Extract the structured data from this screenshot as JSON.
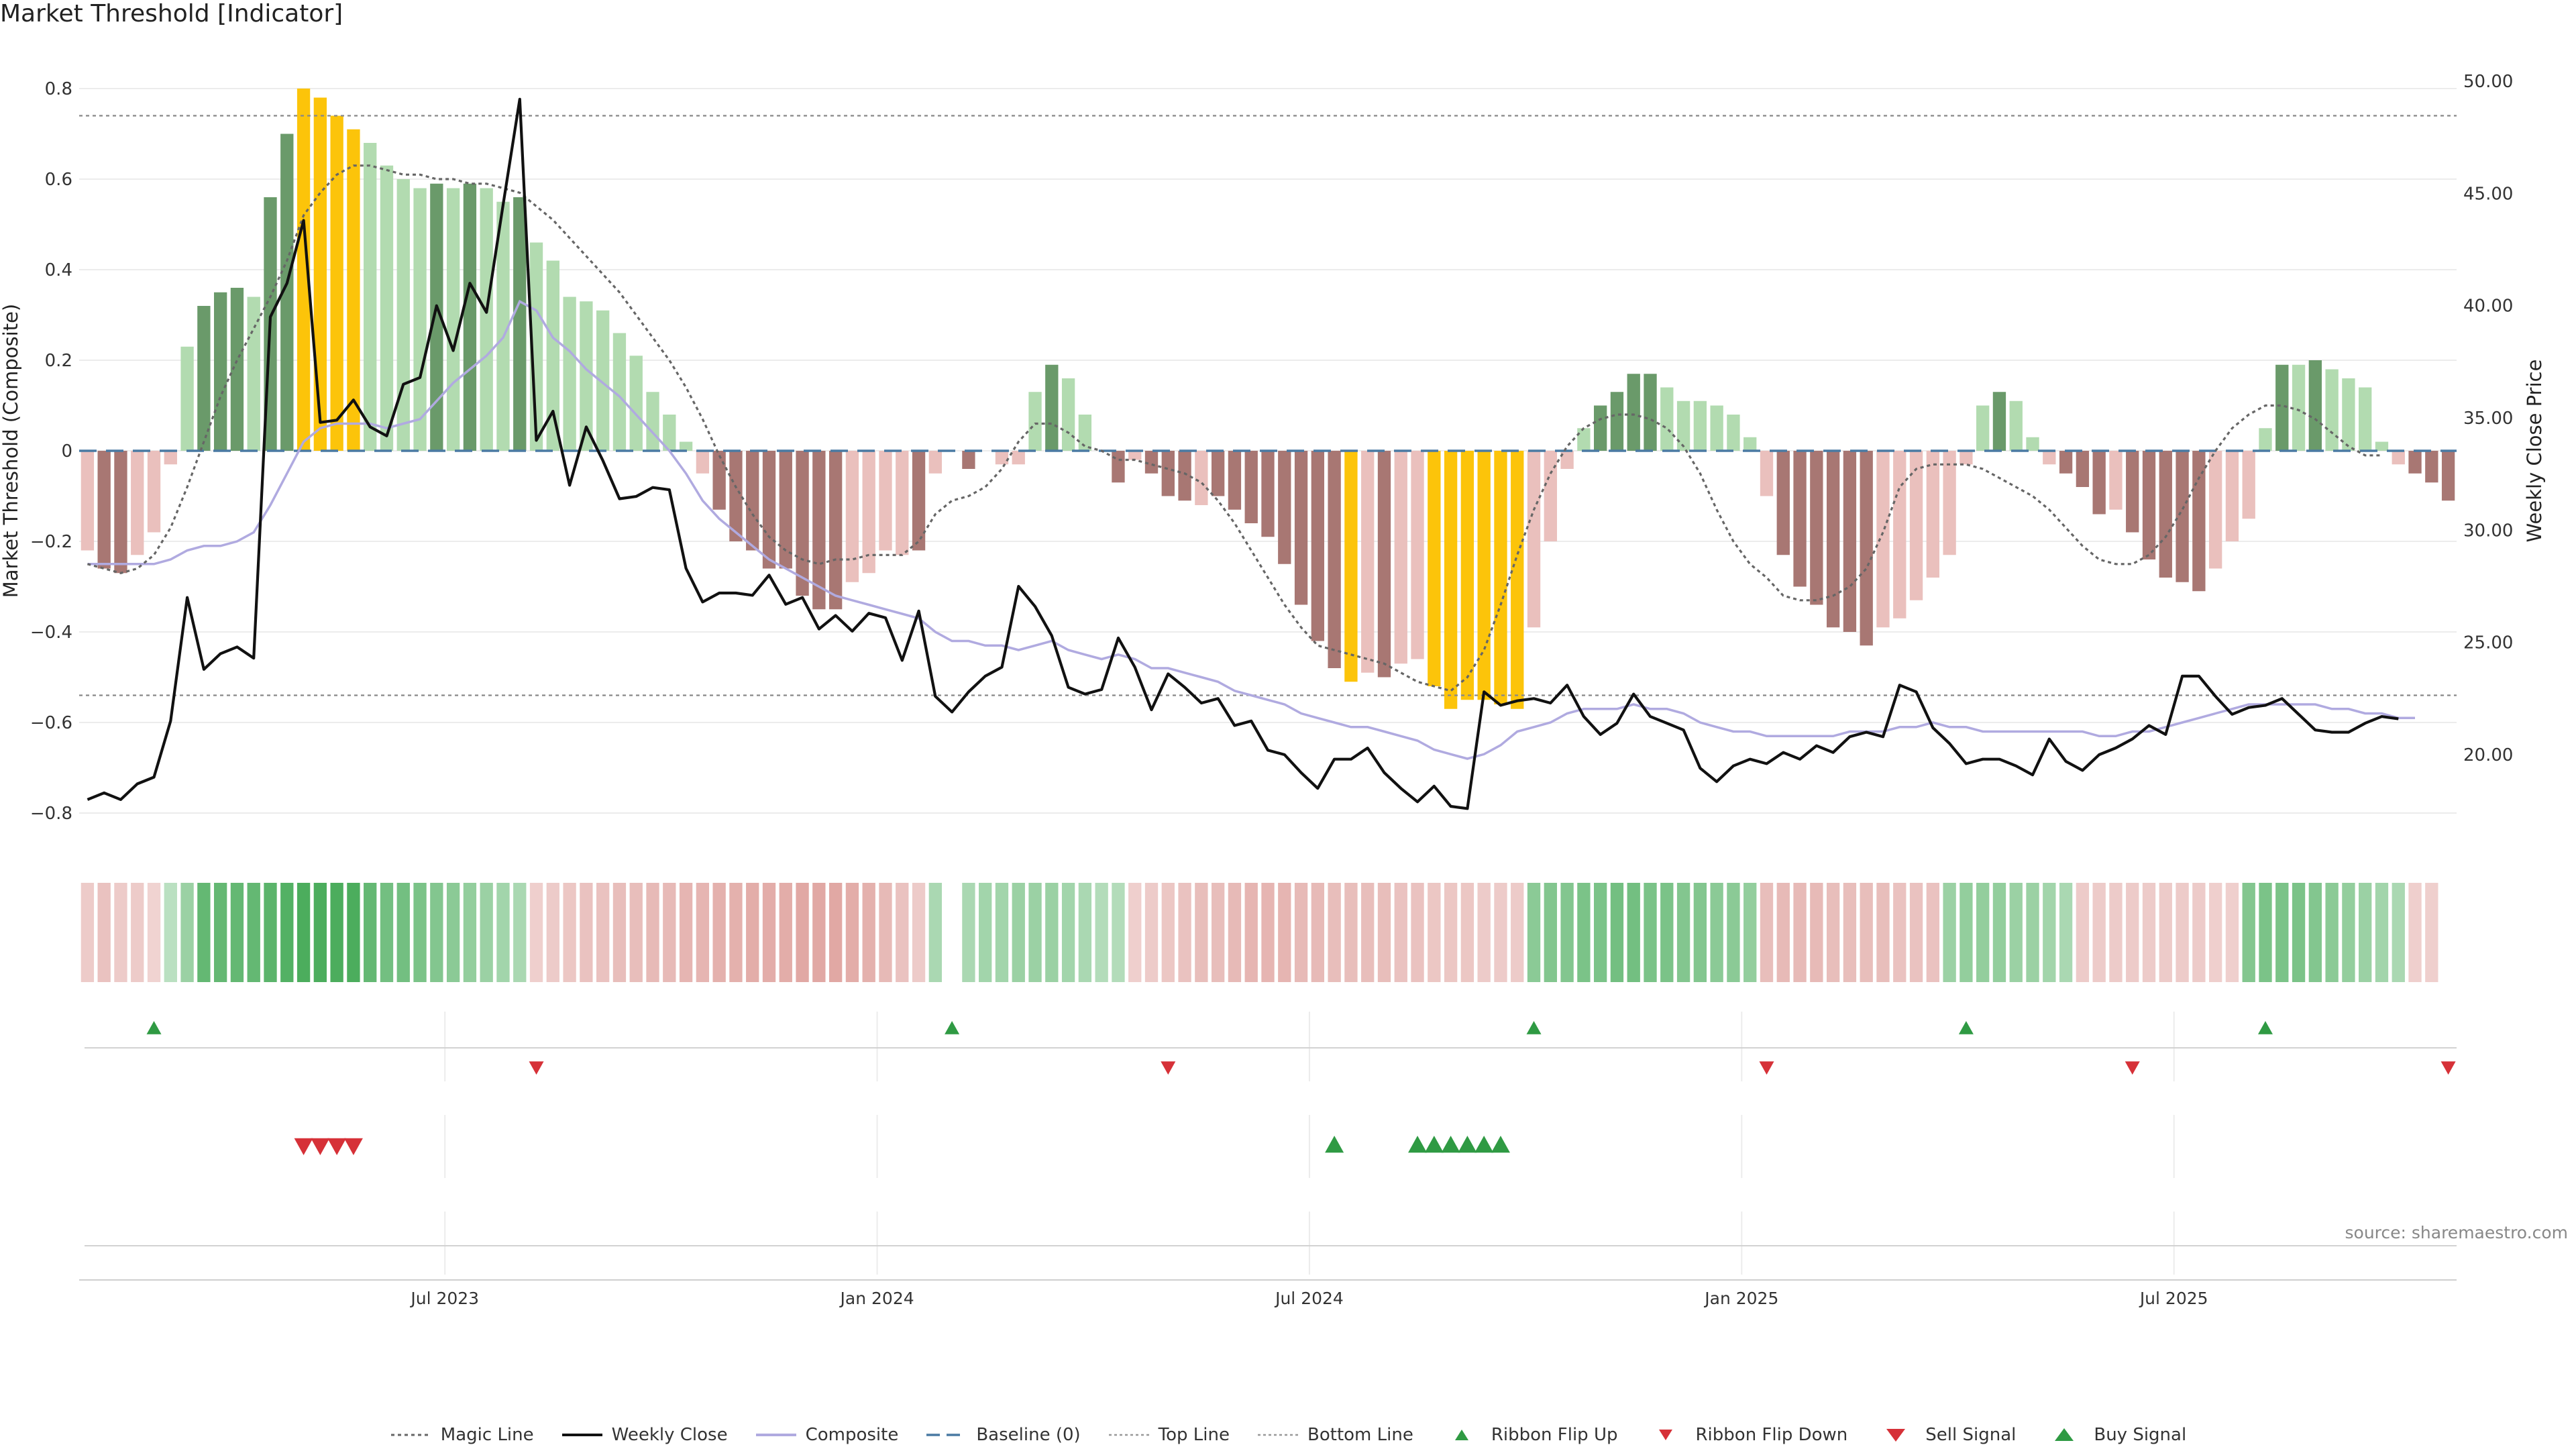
{
  "title": "Market Threshold [Indicator]",
  "source": "source: sharemaestro.com",
  "chart_data": {
    "type": "bar",
    "left_axis": {
      "label": "Market Threshold (Composite)",
      "range": [
        -0.88,
        0.8
      ],
      "ticks": [
        0.8,
        0.6,
        0.4,
        0.2,
        0,
        -0.2,
        -0.4,
        -0.6,
        -0.8
      ],
      "tick_labels": [
        "0.8",
        "0.6",
        "0.4",
        "0.2",
        "0",
        "−0.2",
        "−0.4",
        "−0.6",
        "−0.8"
      ]
    },
    "right_axis": {
      "label": "Weekly Close Price",
      "range": [
        17.0,
        50.0
      ],
      "ticks": [
        50,
        45,
        40,
        35,
        30,
        25,
        20
      ],
      "tick_labels": [
        "50.00",
        "45.00",
        "40.00",
        "35.00",
        "30.00",
        "25.00",
        "20.00"
      ]
    },
    "x_axis": {
      "tick_labels": [
        "Jul 2023",
        "Jan 2024",
        "Jul 2024",
        "Jan 2025",
        "Jul 2025"
      ],
      "tick_weeks": [
        22,
        48,
        74,
        100,
        126
      ]
    },
    "top_line": 0.74,
    "bottom_line": -0.54,
    "baseline": 0,
    "grid": true,
    "legend_position": "bottom-center",
    "colors": {
      "strong_up": "#6a9a6a",
      "weak_up": "#b2dbb0",
      "strong_down": "#a87773",
      "weak_down": "#eac0bd",
      "extreme": "#fcc40a",
      "weekly_close": "#111111",
      "composite": "#b0aae0",
      "baseline": "#4a7aa3",
      "magic_line": "#666666",
      "buy": "#2f9a43",
      "sell": "#d63138"
    },
    "bars": [
      -0.22,
      -0.26,
      -0.27,
      -0.23,
      -0.18,
      -0.03,
      0.23,
      0.32,
      0.35,
      0.36,
      0.34,
      0.56,
      0.7,
      0.8,
      0.78,
      0.74,
      0.71,
      0.68,
      0.63,
      0.6,
      0.58,
      0.59,
      0.58,
      0.59,
      0.58,
      0.55,
      0.56,
      0.46,
      0.42,
      0.34,
      0.33,
      0.31,
      0.26,
      0.21,
      0.13,
      0.08,
      0.02,
      -0.05,
      -0.13,
      -0.2,
      -0.22,
      -0.26,
      -0.26,
      -0.32,
      -0.35,
      -0.35,
      -0.29,
      -0.27,
      -0.22,
      -0.23,
      -0.22,
      -0.05,
      0.0,
      -0.04,
      0.0,
      -0.03,
      -0.03,
      0.13,
      0.19,
      0.16,
      0.08,
      0.0,
      -0.07,
      -0.02,
      -0.05,
      -0.1,
      -0.11,
      -0.12,
      -0.1,
      -0.13,
      -0.16,
      -0.19,
      -0.25,
      -0.34,
      -0.42,
      -0.48,
      -0.51,
      -0.49,
      -0.5,
      -0.47,
      -0.46,
      -0.52,
      -0.57,
      -0.55,
      -0.55,
      -0.56,
      -0.57,
      -0.39,
      -0.2,
      -0.04,
      0.05,
      0.1,
      0.13,
      0.17,
      0.17,
      0.14,
      0.11,
      0.11,
      0.1,
      0.08,
      0.03,
      -0.1,
      -0.23,
      -0.3,
      -0.34,
      -0.39,
      -0.4,
      -0.43,
      -0.39,
      -0.37,
      -0.33,
      -0.28,
      -0.23,
      -0.03,
      0.1,
      0.13,
      0.11,
      0.03,
      -0.03,
      -0.05,
      -0.08,
      -0.14,
      -0.13,
      -0.18,
      -0.24,
      -0.28,
      -0.29,
      -0.31,
      -0.26,
      -0.2,
      -0.15,
      0.05,
      0.19,
      0.19,
      0.2,
      0.18,
      0.16,
      0.14,
      0.02,
      -0.03,
      -0.05,
      -0.07,
      -0.11
    ],
    "bar_classes": [
      "weak_down",
      "strong_down",
      "strong_down",
      "weak_down",
      "weak_down",
      "weak_down",
      "weak_up",
      "strong_up",
      "strong_up",
      "strong_up",
      "weak_up",
      "strong_up",
      "strong_up",
      "extreme",
      "extreme",
      "extreme",
      "extreme",
      "weak_up",
      "weak_up",
      "weak_up",
      "weak_up",
      "strong_up",
      "weak_up",
      "strong_up",
      "weak_up",
      "weak_up",
      "strong_up",
      "weak_up",
      "weak_up",
      "weak_up",
      "weak_up",
      "weak_up",
      "weak_up",
      "weak_up",
      "weak_up",
      "weak_up",
      "weak_up",
      "weak_down",
      "strong_down",
      "strong_down",
      "strong_down",
      "strong_down",
      "strong_down",
      "strong_down",
      "strong_down",
      "strong_down",
      "weak_down",
      "weak_down",
      "weak_down",
      "weak_down",
      "strong_down",
      "weak_down",
      "weak_down",
      "strong_down",
      "weak_down",
      "weak_down",
      "weak_down",
      "weak_up",
      "strong_up",
      "weak_up",
      "weak_up",
      "weak_up",
      "strong_down",
      "weak_down",
      "strong_down",
      "strong_down",
      "strong_down",
      "weak_down",
      "strong_down",
      "strong_down",
      "strong_down",
      "strong_down",
      "strong_down",
      "strong_down",
      "strong_down",
      "strong_down",
      "extreme",
      "weak_down",
      "strong_down",
      "weak_down",
      "weak_down",
      "extreme",
      "extreme",
      "extreme",
      "extreme",
      "extreme",
      "extreme",
      "weak_down",
      "weak_down",
      "weak_down",
      "weak_up",
      "strong_up",
      "strong_up",
      "strong_up",
      "strong_up",
      "weak_up",
      "weak_up",
      "weak_up",
      "weak_up",
      "weak_up",
      "weak_up",
      "weak_down",
      "strong_down",
      "strong_down",
      "strong_down",
      "strong_down",
      "strong_down",
      "strong_down",
      "weak_down",
      "weak_down",
      "weak_down",
      "weak_down",
      "weak_down",
      "weak_down",
      "weak_up",
      "strong_up",
      "weak_up",
      "weak_up",
      "weak_down",
      "strong_down",
      "strong_down",
      "strong_down",
      "weak_down",
      "strong_down",
      "strong_down",
      "strong_down",
      "strong_down",
      "strong_down",
      "weak_down",
      "weak_down",
      "weak_down",
      "weak_up",
      "strong_up",
      "weak_up",
      "strong_up",
      "weak_up",
      "weak_up",
      "weak_up",
      "weak_up",
      "weak_down",
      "strong_down",
      "strong_down",
      "strong_down"
    ],
    "weekly_close": [
      18.0,
      18.3,
      18.0,
      18.7,
      19.0,
      21.5,
      27.0,
      23.8,
      24.5,
      24.8,
      24.3,
      39.5,
      41.0,
      43.8,
      34.8,
      34.9,
      35.8,
      34.6,
      34.2,
      36.5,
      36.8,
      40.0,
      38.0,
      41.0,
      39.7,
      44.5,
      49.2,
      34.0,
      35.3,
      32.0,
      34.6,
      33.1,
      31.4,
      31.5,
      31.9,
      31.8,
      28.3,
      26.8,
      27.2,
      27.2,
      27.1,
      28.0,
      26.7,
      27.0,
      25.6,
      26.2,
      25.5,
      26.3,
      26.1,
      24.2,
      26.4,
      22.6,
      21.9,
      22.8,
      23.5,
      23.9,
      27.5,
      26.6,
      25.3,
      23.0,
      22.7,
      22.9,
      25.2,
      23.9,
      22.0,
      23.6,
      23.0,
      22.3,
      22.5,
      21.3,
      21.5,
      20.2,
      20.0,
      19.2,
      18.5,
      19.8,
      19.8,
      20.3,
      19.2,
      18.5,
      17.9,
      18.6,
      17.7,
      17.6,
      22.8,
      22.2,
      22.4,
      22.5,
      22.3,
      23.1,
      21.7,
      20.9,
      21.4,
      22.7,
      21.7,
      21.4,
      21.1,
      19.4,
      18.8,
      19.5,
      19.8,
      19.6,
      20.1,
      19.8,
      20.4,
      20.1,
      20.8,
      21.0,
      20.8,
      23.1,
      22.8,
      21.2,
      20.5,
      19.6,
      19.8,
      19.8,
      19.5,
      19.1,
      20.7,
      19.7,
      19.3,
      20.0,
      20.3,
      20.7,
      21.3,
      20.9,
      23.5,
      23.5,
      22.6,
      21.8,
      22.1,
      22.2,
      22.5,
      21.8,
      21.1,
      21.0,
      21.0,
      21.4,
      21.7,
      21.6
    ],
    "composite": [
      -0.25,
      -0.25,
      -0.25,
      -0.25,
      -0.25,
      -0.24,
      -0.22,
      -0.21,
      -0.21,
      -0.2,
      -0.18,
      -0.12,
      -0.05,
      0.02,
      0.05,
      0.06,
      0.06,
      0.06,
      0.05,
      0.06,
      0.07,
      0.11,
      0.15,
      0.18,
      0.21,
      0.25,
      0.33,
      0.31,
      0.25,
      0.22,
      0.18,
      0.15,
      0.12,
      0.08,
      0.04,
      0.0,
      -0.05,
      -0.11,
      -0.15,
      -0.18,
      -0.21,
      -0.24,
      -0.26,
      -0.28,
      -0.3,
      -0.32,
      -0.33,
      -0.34,
      -0.35,
      -0.36,
      -0.37,
      -0.4,
      -0.42,
      -0.42,
      -0.43,
      -0.43,
      -0.44,
      -0.43,
      -0.42,
      -0.44,
      -0.45,
      -0.46,
      -0.45,
      -0.46,
      -0.48,
      -0.48,
      -0.49,
      -0.5,
      -0.51,
      -0.53,
      -0.54,
      -0.55,
      -0.56,
      -0.58,
      -0.59,
      -0.6,
      -0.61,
      -0.61,
      -0.62,
      -0.63,
      -0.64,
      -0.66,
      -0.67,
      -0.68,
      -0.67,
      -0.65,
      -0.62,
      -0.61,
      -0.6,
      -0.58,
      -0.57,
      -0.57,
      -0.57,
      -0.56,
      -0.57,
      -0.57,
      -0.58,
      -0.6,
      -0.61,
      -0.62,
      -0.62,
      -0.63,
      -0.63,
      -0.63,
      -0.63,
      -0.63,
      -0.62,
      -0.62,
      -0.62,
      -0.61,
      -0.61,
      -0.6,
      -0.61,
      -0.61,
      -0.62,
      -0.62,
      -0.62,
      -0.62,
      -0.62,
      -0.62,
      -0.62,
      -0.63,
      -0.63,
      -0.62,
      -0.62,
      -0.61,
      -0.6,
      -0.59,
      -0.58,
      -0.57,
      -0.56,
      -0.56,
      -0.56,
      -0.56,
      -0.56,
      -0.57,
      -0.57,
      -0.58,
      -0.58,
      -0.59,
      -0.59
    ],
    "magic_line": [
      -0.25,
      -0.26,
      -0.27,
      -0.26,
      -0.23,
      -0.17,
      -0.08,
      0.02,
      0.12,
      0.2,
      0.27,
      0.34,
      0.42,
      0.52,
      0.57,
      0.61,
      0.63,
      0.63,
      0.62,
      0.61,
      0.61,
      0.6,
      0.6,
      0.59,
      0.59,
      0.58,
      0.57,
      0.54,
      0.51,
      0.47,
      0.43,
      0.39,
      0.35,
      0.3,
      0.25,
      0.2,
      0.14,
      0.07,
      -0.01,
      -0.08,
      -0.14,
      -0.19,
      -0.22,
      -0.24,
      -0.25,
      -0.24,
      -0.24,
      -0.23,
      -0.23,
      -0.23,
      -0.2,
      -0.14,
      -0.11,
      -0.1,
      -0.08,
      -0.04,
      0.02,
      0.06,
      0.06,
      0.04,
      0.01,
      0.0,
      -0.02,
      -0.02,
      -0.03,
      -0.04,
      -0.05,
      -0.07,
      -0.11,
      -0.16,
      -0.22,
      -0.28,
      -0.34,
      -0.39,
      -0.43,
      -0.44,
      -0.45,
      -0.46,
      -0.47,
      -0.49,
      -0.51,
      -0.52,
      -0.53,
      -0.5,
      -0.44,
      -0.34,
      -0.23,
      -0.13,
      -0.05,
      0.01,
      0.05,
      0.07,
      0.08,
      0.08,
      0.07,
      0.05,
      0.01,
      -0.05,
      -0.13,
      -0.2,
      -0.25,
      -0.28,
      -0.32,
      -0.33,
      -0.33,
      -0.32,
      -0.3,
      -0.26,
      -0.18,
      -0.08,
      -0.04,
      -0.03,
      -0.03,
      -0.03,
      -0.04,
      -0.06,
      -0.08,
      -0.1,
      -0.13,
      -0.17,
      -0.21,
      -0.24,
      -0.25,
      -0.25,
      -0.23,
      -0.19,
      -0.13,
      -0.06,
      0.0,
      0.05,
      0.08,
      0.1,
      0.1,
      0.09,
      0.07,
      0.04,
      0.01,
      -0.01,
      -0.01
    ],
    "ribbon": [
      -0.35,
      -0.45,
      -0.35,
      -0.35,
      -0.25,
      0.25,
      0.45,
      0.8,
      0.8,
      0.8,
      0.8,
      0.85,
      0.9,
      0.95,
      0.95,
      0.95,
      0.95,
      0.8,
      0.7,
      0.7,
      0.65,
      0.6,
      0.55,
      0.5,
      0.45,
      0.4,
      0.35,
      -0.3,
      -0.35,
      -0.4,
      -0.45,
      -0.45,
      -0.5,
      -0.5,
      -0.55,
      -0.55,
      -0.6,
      -0.6,
      -0.65,
      -0.65,
      -0.7,
      -0.7,
      -0.7,
      -0.75,
      -0.75,
      -0.75,
      -0.7,
      -0.65,
      -0.55,
      -0.45,
      -0.35,
      0.35,
      0.0,
      0.35,
      0.4,
      0.4,
      0.45,
      0.45,
      0.45,
      0.4,
      0.35,
      0.3,
      0.3,
      -0.3,
      -0.35,
      -0.4,
      -0.45,
      -0.5,
      -0.5,
      -0.55,
      -0.6,
      -0.6,
      -0.6,
      -0.55,
      -0.55,
      -0.5,
      -0.5,
      -0.5,
      -0.5,
      -0.45,
      -0.45,
      -0.4,
      -0.4,
      -0.4,
      -0.35,
      -0.35,
      -0.35,
      0.55,
      0.6,
      0.6,
      0.65,
      0.65,
      0.7,
      0.7,
      0.65,
      0.65,
      0.6,
      0.6,
      0.55,
      0.55,
      0.5,
      -0.5,
      -0.55,
      -0.55,
      -0.55,
      -0.5,
      -0.5,
      -0.5,
      -0.5,
      -0.45,
      -0.45,
      -0.45,
      0.45,
      0.5,
      0.5,
      0.5,
      0.45,
      0.45,
      0.4,
      0.35,
      -0.35,
      -0.35,
      -0.35,
      -0.35,
      -0.35,
      -0.35,
      -0.35,
      -0.35,
      -0.3,
      -0.3,
      0.6,
      0.65,
      0.65,
      0.65,
      0.6,
      0.55,
      0.5,
      0.45,
      0.4,
      0.35,
      -0.3,
      -0.3
    ],
    "ribbon_flip_up": [
      4,
      52,
      87,
      113,
      131
    ],
    "ribbon_flip_down": [
      27,
      65,
      101,
      123,
      142
    ],
    "sell_signal": [
      13,
      14,
      15,
      16
    ],
    "buy_signal": [
      75,
      80,
      81,
      82,
      83,
      84,
      85
    ]
  },
  "legend": [
    {
      "label": "Magic Line",
      "icon": "dotted-line"
    },
    {
      "label": "Weekly Close",
      "icon": "solid-line"
    },
    {
      "label": "Composite",
      "icon": "solid-line-lavender"
    },
    {
      "label": "Baseline (0)",
      "icon": "dashed-line"
    },
    {
      "label": "Top Line",
      "icon": "dotted-line-light"
    },
    {
      "label": "Bottom Line",
      "icon": "dotted-line-light"
    },
    {
      "label": "Ribbon Flip Up",
      "icon": "triangle-up"
    },
    {
      "label": "Ribbon Flip Down",
      "icon": "triangle-down"
    },
    {
      "label": "Sell Signal",
      "icon": "triangle-down-large"
    },
    {
      "label": "Buy Signal",
      "icon": "triangle-up-large"
    }
  ]
}
